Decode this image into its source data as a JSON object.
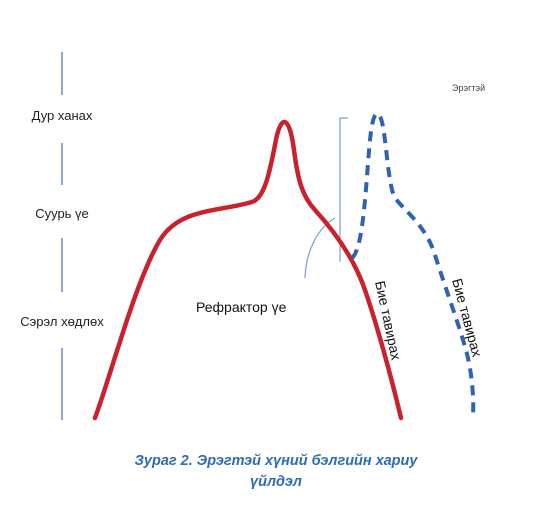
{
  "stages": [
    "Дур ханах",
    "Суурь үе",
    "Сэрэл хөдлөх"
  ],
  "annotations": {
    "refractory": "Рефрактор үе",
    "resolution_red": "Бие тавирах",
    "resolution_blue": "Бие тавирах",
    "legend_male": "Эрэгтэй"
  },
  "caption": {
    "line1": "Зураг 2. Эрэгтэй хүний бэлгийн хариу",
    "line2": "үйлдэл"
  },
  "colors": {
    "first_cycle": "#c8232c",
    "second_cycle": "#2f62b3",
    "guides": "#7fa6cf",
    "caption": "#2d6db5"
  }
}
